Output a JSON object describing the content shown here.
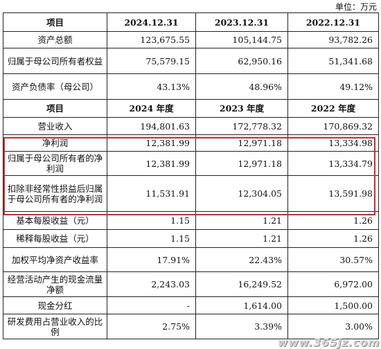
{
  "unit": "单位：万元",
  "section1": {
    "headers": [
      "项目",
      "2024.12.31",
      "2023.12.31",
      "2022.12.31"
    ],
    "rows": [
      {
        "label": "资产总额",
        "v": [
          "123,675.55",
          "105,144.75",
          "93,782.26"
        ]
      },
      {
        "label": "归属于母公司所有者权益",
        "v": [
          "75,579.15",
          "62,950.16",
          "51,341.68"
        ]
      },
      {
        "label": "资产负债率（母公司）",
        "v": [
          "43.13%",
          "48.96%",
          "49.12%"
        ]
      }
    ]
  },
  "section2": {
    "headers": [
      "项目",
      "2024 年度",
      "2023 年度",
      "2022 年度"
    ],
    "rows": [
      {
        "label": "营业收入",
        "v": [
          "194,801.63",
          "172,778.32",
          "170,869.32"
        ]
      },
      {
        "label": "净利润",
        "v": [
          "12,381.99",
          "12,971.18",
          "13,334.98"
        ]
      },
      {
        "label": "归属于母公司所有者的净利润",
        "v": [
          "12,381.99",
          "12,971.18",
          "13,334.79"
        ]
      },
      {
        "label": "扣除非经常性损益后归属于母公司所有者的净利润",
        "v": [
          "11,531.91",
          "12,304.05",
          "13,591.98"
        ]
      },
      {
        "label": "基本每股收益（元）",
        "v": [
          "1.15",
          "1.21",
          "1.26"
        ]
      },
      {
        "label": "稀释每股收益（元）",
        "v": [
          "1.15",
          "1.21",
          "1.26"
        ]
      },
      {
        "label": "加权平均净资产收益率",
        "v": [
          "17.91%",
          "22.43%",
          "30.57%"
        ]
      },
      {
        "label": "经营活动产生的现金流量净额",
        "v": [
          "2,243.03",
          "16,249.52",
          "6,972.00"
        ]
      },
      {
        "label": "现金分红",
        "v": [
          "-",
          "1,614.00",
          "1,500.00"
        ]
      },
      {
        "label": "研发费用占营业收入的比例",
        "v": [
          "2.75%",
          "3.39%",
          "3.00%"
        ]
      }
    ]
  },
  "highlight_color": "#d3272b",
  "watermark": "www.365jz.com"
}
